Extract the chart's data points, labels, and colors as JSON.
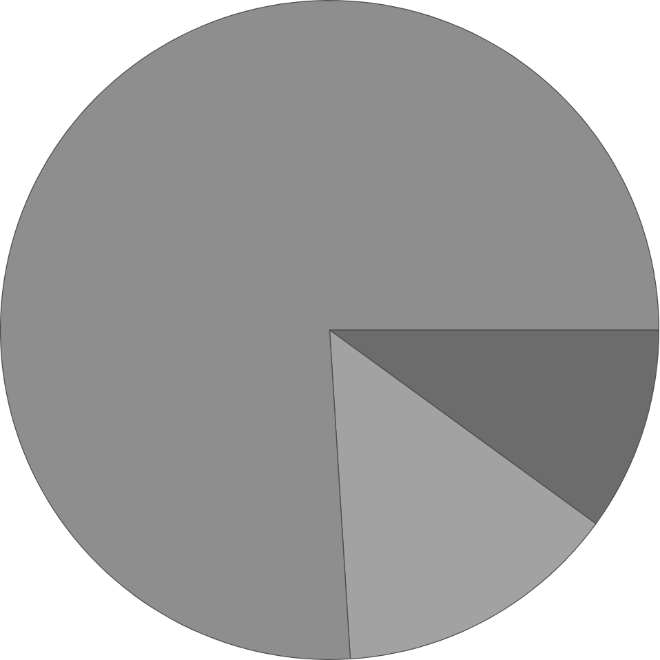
{
  "chart_data": {
    "type": "pie",
    "categories": [
      null,
      null,
      null
    ],
    "values": [
      10,
      14,
      76
    ],
    "colors": [
      "#6c6c6c",
      "#a2a2a2",
      "#8e8e8e"
    ]
  }
}
